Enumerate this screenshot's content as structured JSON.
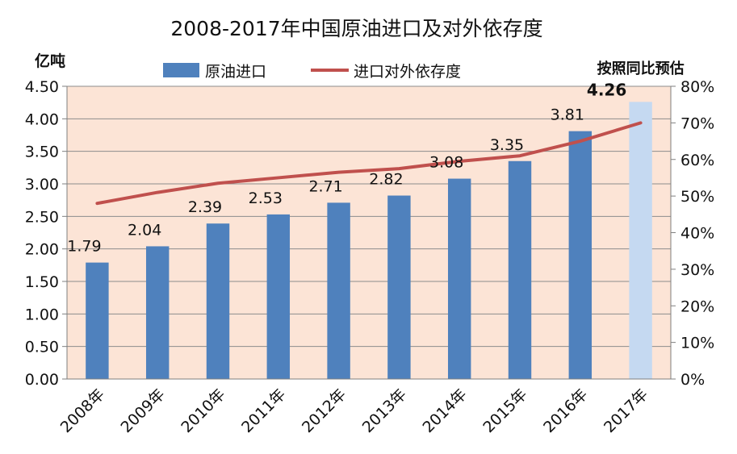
{
  "chart_data": {
    "type": "bar+line",
    "title": "2008-2017年中国原油进口及对外依存度",
    "categories": [
      "2008年",
      "2009年",
      "2010年",
      "2011年",
      "2012年",
      "2013年",
      "2014年",
      "2015年",
      "2016年",
      "2017年"
    ],
    "y_left": {
      "unit": "亿吨",
      "range": [
        0,
        4.5
      ],
      "ticks": [
        "0.00",
        "0.50",
        "1.00",
        "1.50",
        "2.00",
        "2.50",
        "3.00",
        "3.50",
        "4.00",
        "4.50"
      ]
    },
    "y_right": {
      "range": [
        0,
        80
      ],
      "ticks": [
        "0%",
        "10%",
        "20%",
        "30%",
        "40%",
        "50%",
        "60%",
        "70%",
        "80%"
      ]
    },
    "series": [
      {
        "name": "原油进口",
        "kind": "bar",
        "color": "#4f81bd",
        "values": [
          1.79,
          2.04,
          2.39,
          2.53,
          2.71,
          2.82,
          3.08,
          3.35,
          3.81,
          4.26
        ],
        "labels": [
          "1.79",
          "2.04",
          "2.39",
          "2.53",
          "2.71",
          "2.82",
          "3.08",
          "3.35",
          "3.81",
          "4.26"
        ],
        "estimated_index": 9,
        "estimated_color": "#c5d9f1"
      },
      {
        "name": "进口对外依存度",
        "kind": "line",
        "axis": "right",
        "color": "#c0504d",
        "values": [
          48,
          51,
          53.5,
          55,
          56.5,
          57.5,
          59.5,
          61,
          65,
          70
        ]
      }
    ],
    "annotation": "按照同比预估",
    "plot_background": "#fce4d6",
    "grid": true,
    "legend_position": "top"
  }
}
